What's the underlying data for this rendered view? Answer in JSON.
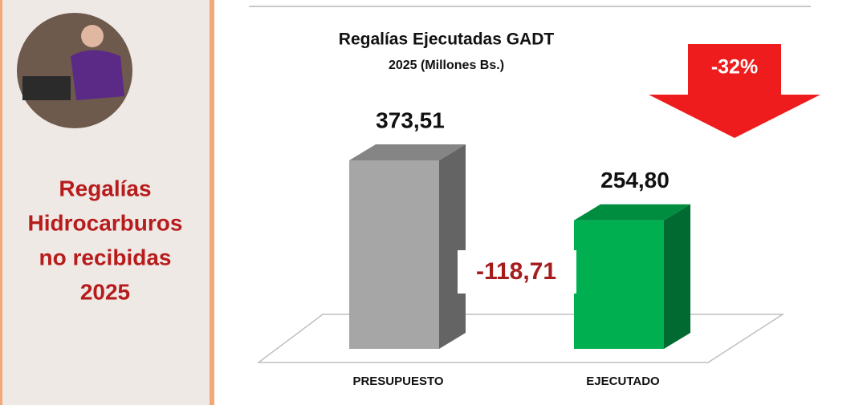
{
  "side_panel": {
    "lines": [
      "Regalías",
      "Hidrocarburos",
      "no recibidas",
      "2025"
    ]
  },
  "chart_data": {
    "type": "bar",
    "title": "Regalías Ejecutadas GADT",
    "subtitle": "2025 (Millones Bs.)",
    "categories": [
      "PRESUPUESTO",
      "EJECUTADO"
    ],
    "values": [
      373.51,
      254.8
    ],
    "value_labels": [
      "373,51",
      "254,80"
    ],
    "colors": [
      "#a6a6a6",
      "#00b050"
    ],
    "annotations": [
      "-118,71",
      "-32%"
    ]
  }
}
